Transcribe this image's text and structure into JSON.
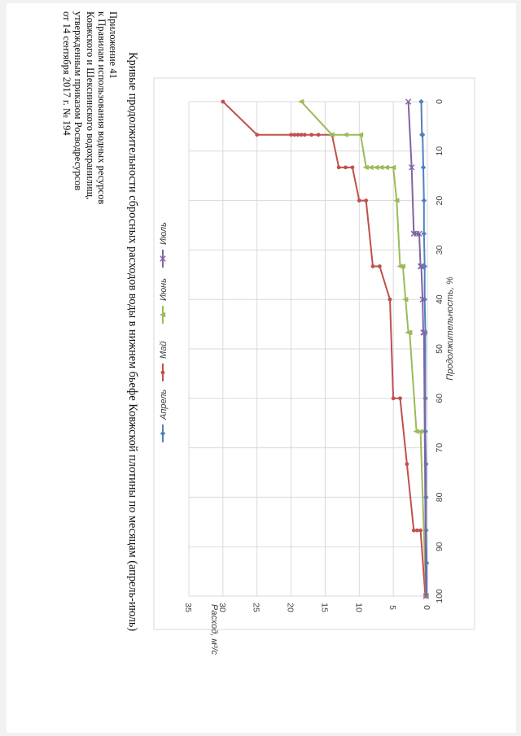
{
  "header": {
    "lines": [
      "Приложение 41",
      "к Правилам использования водных ресурсов",
      "Ковжского и Шекснинского водохранилищ,",
      "утвержденным приказом Росводресурсов",
      "от 14 сентября 2017 г. № 194"
    ]
  },
  "chart_data": {
    "type": "line",
    "title": "Кривые продолжительности сбросных расходов воды в нижнем бьефе Ковжской плотины по месяцам (апрель-июль)",
    "xlabel": "Продолжительность, %",
    "ylabel": "Расход, м³/с",
    "xlim": [
      0,
      100
    ],
    "ylim": [
      0,
      35
    ],
    "xticks": [
      0,
      10,
      20,
      30,
      40,
      50,
      60,
      70,
      80,
      90,
      100
    ],
    "yticks": [
      0,
      5,
      10,
      15,
      20,
      25,
      30,
      35
    ],
    "grid": true,
    "legend_position": "top",
    "series": [
      {
        "name": "Апрель",
        "color": "#4f81bd",
        "marker": "diamond",
        "x": [
          0,
          6.7,
          6.7,
          13.3,
          20,
          26.7,
          33.3,
          40,
          46.7,
          60,
          66.7,
          73.3,
          80,
          86.7,
          93.3,
          100
        ],
        "y": [
          0.9,
          0.8,
          0.7,
          0.6,
          0.5,
          0.5,
          0.4,
          0.4,
          0.3,
          0.3,
          0.3,
          0.2,
          0.2,
          0.2,
          0.1,
          0.1
        ]
      },
      {
        "name": "Май",
        "color": "#c0504d",
        "marker": "circle",
        "x": [
          0,
          6.7,
          6.7,
          6.7,
          6.7,
          6.7,
          6.7,
          6.7,
          6.7,
          6.7,
          13.3,
          13.3,
          13.3,
          20,
          20,
          33.3,
          33.3,
          40,
          60,
          60,
          73.3,
          86.7,
          86.7,
          86.7,
          100
        ],
        "y": [
          30,
          25,
          20,
          19.5,
          19,
          18.5,
          18,
          17,
          16,
          14,
          13,
          12,
          11,
          10,
          9,
          8,
          7,
          5.5,
          5,
          4,
          3,
          2,
          1.5,
          1,
          0.3
        ],
        "label_series": false
      },
      {
        "name": "Июнь",
        "color": "#9bbb59",
        "marker": "triangle",
        "x": [
          0,
          6.7,
          6.7,
          6.7,
          13.3,
          13.3,
          13.3,
          13.3,
          13.3,
          13.3,
          20,
          33.3,
          33.3,
          40,
          46.7,
          46.7,
          66.7,
          66.7,
          100
        ],
        "y": [
          18.5,
          14,
          12,
          9.8,
          9,
          8.3,
          7.5,
          6.8,
          6,
          5,
          4.5,
          4,
          3.6,
          3.2,
          2.8,
          2.6,
          1.6,
          1,
          0.2
        ]
      },
      {
        "name": "Июль",
        "color": "#8064a2",
        "marker": "x",
        "x": [
          0,
          13.3,
          26.7,
          26.7,
          26.7,
          33.3,
          33.3,
          40,
          46.7,
          46.7,
          100
        ],
        "y": [
          2.8,
          2.3,
          2,
          1.6,
          1.2,
          1,
          0.9,
          0.7,
          0.6,
          0.5,
          0.2
        ]
      }
    ]
  }
}
